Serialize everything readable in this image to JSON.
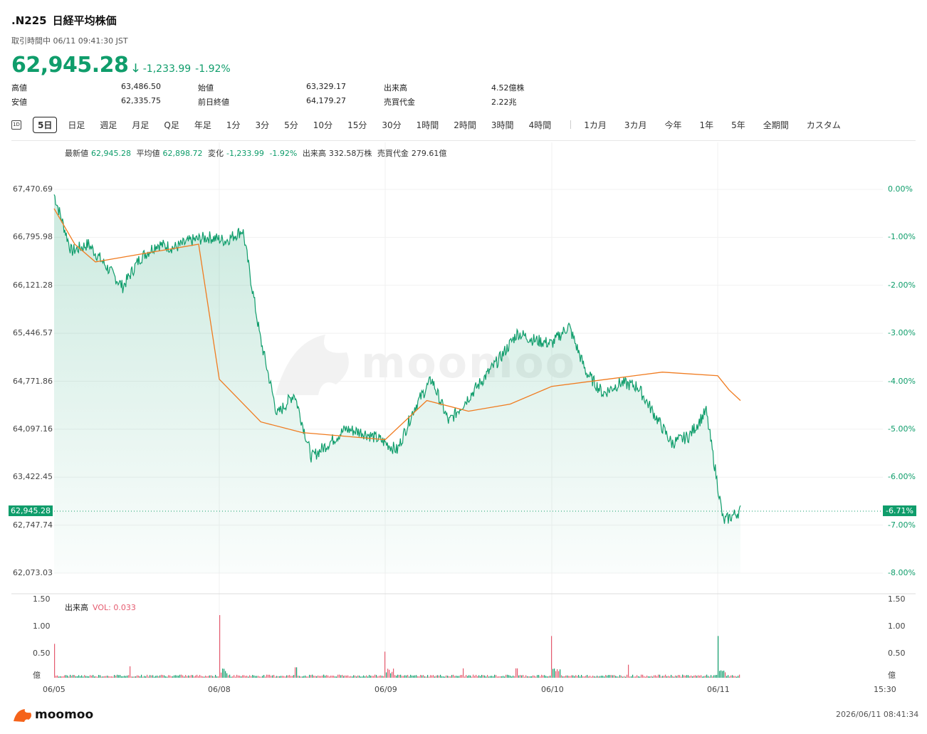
{
  "header": {
    "symbol": ".N225",
    "name": "日経平均株価",
    "status": "取引時間中 06/11 09:41:30 JST",
    "price": "62,945.28",
    "change": "-1,233.99",
    "change_pct": "-1.92%",
    "direction_icon": "arrow-down-icon"
  },
  "stats": [
    {
      "label": "高値",
      "value": "63,486.50"
    },
    {
      "label": "始値",
      "value": "63,329.17"
    },
    {
      "label": "出来高",
      "value": "4.52億株"
    },
    {
      "label": "安値",
      "value": "62,335.75"
    },
    {
      "label": "前日終値",
      "value": "64,179.27"
    },
    {
      "label": "売買代金",
      "value": "2.22兆"
    }
  ],
  "tabs": {
    "icon_label": "1D",
    "active": "5日",
    "items": [
      "5日",
      "日足",
      "週足",
      "月足",
      "Q足",
      "年足",
      "1分",
      "3分",
      "5分",
      "10分",
      "15分",
      "30分",
      "1時間",
      "2時間",
      "3時間",
      "4時間"
    ],
    "items2": [
      "1カ月",
      "3カ月",
      "今年",
      "1年",
      "5年",
      "全期間",
      "カスタム"
    ]
  },
  "legend": {
    "latest_label": "最新値",
    "latest": "62,945.28",
    "avg_label": "平均値",
    "avg": "62,898.72",
    "chg_label": "変化",
    "chg": "-1,233.99",
    "chg_pct": "-1.92%",
    "vol_label": "出来高",
    "vol": "332.58万株",
    "amt_label": "売買代金",
    "amt": "279.61億"
  },
  "price_axis": [
    "67,470.69",
    "66,795.98",
    "66,121.28",
    "65,446.57",
    "64,771.86",
    "64,097.16",
    "63,422.45",
    "62,747.74",
    "62,073.03"
  ],
  "pct_axis": [
    "0.00%",
    "-1.00%",
    "-2.00%",
    "-3.00%",
    "-4.00%",
    "-5.00%",
    "-6.00%",
    "-7.00%",
    "-8.00%"
  ],
  "current_price_tag": "62,945.28",
  "current_pct_tag": "-6.71%",
  "volume": {
    "title": "出来高",
    "vol_label": "VOL: 0.033",
    "axis": [
      "1.50",
      "1.00",
      "0.50",
      "億"
    ]
  },
  "x_axis": [
    "06/05",
    "06/08",
    "06/09",
    "06/10",
    "06/11",
    "15:30"
  ],
  "footer": {
    "brand": "moomoo",
    "timestamp": "2026/06/11 08:41:34"
  },
  "watermark": "moomoo",
  "colors": {
    "up": "#0f9d6b",
    "down": "#e55a6e",
    "avg": "#f07b1f"
  },
  "chart_data": {
    "type": "line",
    "title": "",
    "xlabel": "",
    "ylabel": "",
    "ylim": [
      62073.03,
      67470.69
    ],
    "series": [
      {
        "values": [
          67400,
          66600,
          66700,
          66400,
          66100,
          66500,
          66700,
          66650,
          66750,
          66800,
          66750,
          66900,
          65400,
          64300,
          64600,
          63700,
          63900,
          64100,
          64050,
          63950,
          63800,
          64400,
          64800,
          64200,
          64500,
          64800,
          65100,
          65450,
          65350,
          65300,
          65550,
          64900,
          64600,
          64750,
          64700,
          64300,
          63900,
          64000,
          64350,
          62800,
          62950
        ]
      },
      {
        "values": [
          67200,
          66700,
          66450,
          66500,
          66550,
          66600,
          66650,
          66700,
          64800,
          64200,
          64050,
          64000,
          63950,
          64500,
          64350,
          64450,
          64700,
          64800,
          64900,
          64850,
          64650,
          64500
        ]
      }
    ]
  }
}
